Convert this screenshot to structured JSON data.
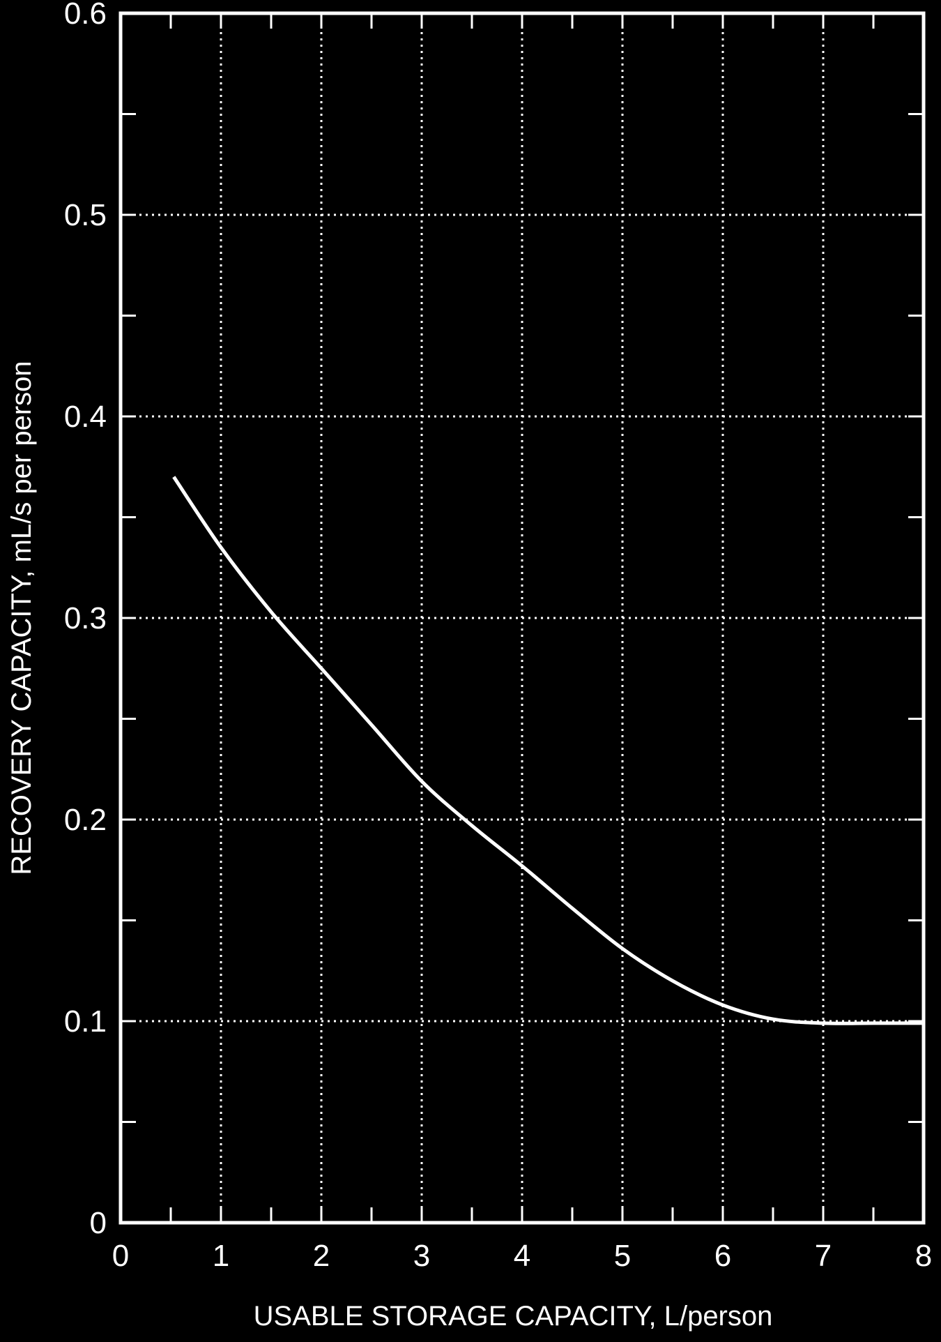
{
  "chart_data": {
    "type": "line",
    "title": "",
    "xlabel": "USABLE STORAGE CAPACITY, L/person",
    "ylabel": "RECOVERY CAPACITY, mL/s per person",
    "xlim": [
      0,
      8
    ],
    "ylim": [
      0,
      0.6
    ],
    "x_ticks": [
      0,
      1,
      2,
      3,
      4,
      5,
      6,
      7,
      8
    ],
    "x_tick_labels": [
      "0",
      "1",
      "2",
      "3",
      "4",
      "5",
      "6",
      "7",
      "8"
    ],
    "y_ticks": [
      0,
      0.1,
      0.2,
      0.3,
      0.4,
      0.5,
      0.6
    ],
    "y_tick_labels": [
      "0",
      "0.1",
      "0.2",
      "0.3",
      "0.4",
      "0.5",
      "0.6"
    ],
    "y_minor_ticks": [
      0.05,
      0.15,
      0.25,
      0.35,
      0.45,
      0.55
    ],
    "x_minor_ticks": [
      0.5,
      1.5,
      2.5,
      3.5,
      4.5,
      5.5,
      6.5,
      7.5
    ],
    "grid": true,
    "colors": {
      "background": "#000000",
      "foreground": "#ffffff"
    },
    "series": [
      {
        "x": [
          0.53,
          1.0,
          1.5,
          2.0,
          2.5,
          3.0,
          3.5,
          4.0,
          4.5,
          5.0,
          5.5,
          6.0,
          6.5,
          7.0,
          7.5,
          8.0
        ],
        "y": [
          0.37,
          0.335,
          0.303,
          0.275,
          0.247,
          0.219,
          0.197,
          0.177,
          0.156,
          0.136,
          0.12,
          0.108,
          0.101,
          0.099,
          0.099,
          0.099
        ]
      }
    ]
  }
}
